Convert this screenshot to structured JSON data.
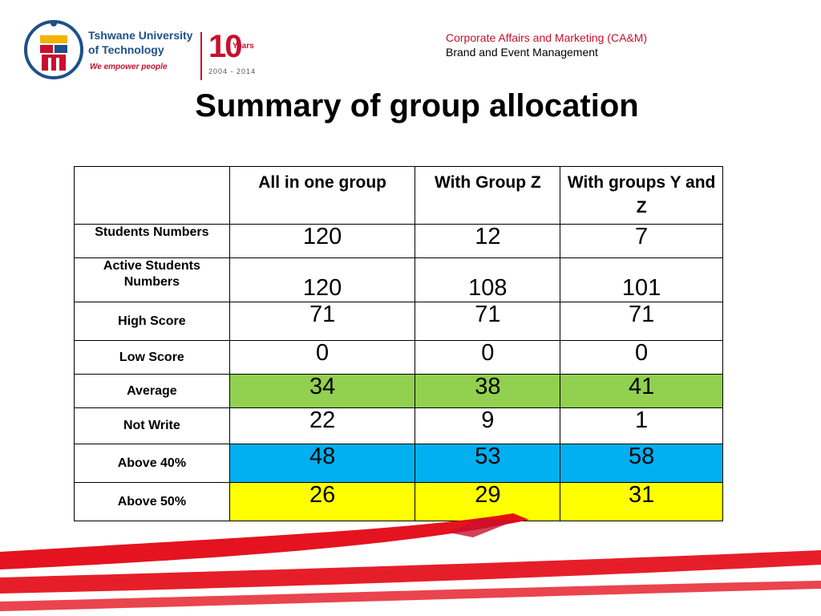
{
  "logo": {
    "name_line1": "Tshwane University",
    "name_line2": "of Technology",
    "tagline": "We empower people",
    "anniversary_number": "10",
    "anniversary_label": "Years",
    "anniversary_span": "2004 - 2014"
  },
  "header": {
    "department": "Corporate Affairs and Marketing (CA&M)",
    "unit": "Brand and Event Management"
  },
  "title": "Summary of group allocation",
  "table": {
    "columns": [
      "",
      "All in one group",
      "With Group Z",
      "With groups Y and Z"
    ],
    "rows": [
      {
        "label": "Students Numbers",
        "values": [
          "120",
          "12",
          "7"
        ]
      },
      {
        "label": "Active Students Numbers",
        "values": [
          "120",
          "108",
          "101"
        ]
      },
      {
        "label": "High  Score",
        "values": [
          "71",
          "71",
          "71"
        ]
      },
      {
        "label": "Low Score",
        "values": [
          "0",
          "0",
          "0"
        ]
      },
      {
        "label": "Average",
        "values": [
          "34",
          "38",
          "41"
        ]
      },
      {
        "label": "Not Write",
        "values": [
          "22",
          "9",
          "1"
        ]
      },
      {
        "label": "Above 40%",
        "values": [
          "48",
          "53",
          "58"
        ]
      },
      {
        "label": "Above 50%",
        "values": [
          "26",
          "29",
          "31"
        ]
      }
    ]
  },
  "colors": {
    "brand_red": "#c8102e",
    "brand_blue": "#1f4f8a",
    "average_row": "#92d050",
    "above40_row": "#00b0f0",
    "above50_row": "#ffff00"
  }
}
